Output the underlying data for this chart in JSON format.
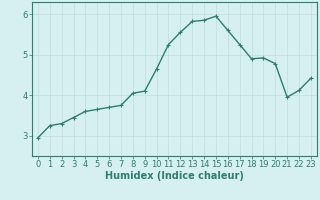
{
  "x": [
    0,
    1,
    2,
    3,
    4,
    5,
    6,
    7,
    8,
    9,
    10,
    11,
    12,
    13,
    14,
    15,
    16,
    17,
    18,
    19,
    20,
    21,
    22,
    23
  ],
  "y": [
    2.95,
    3.25,
    3.3,
    3.45,
    3.6,
    3.65,
    3.7,
    3.75,
    4.05,
    4.1,
    4.65,
    5.25,
    5.55,
    5.82,
    5.85,
    5.95,
    5.6,
    5.25,
    4.9,
    4.92,
    4.78,
    3.95,
    4.12,
    4.42
  ],
  "line_color": "#2e7d6e",
  "marker": "+",
  "marker_size": 3,
  "bg_color": "#d5f0ee",
  "grid_color": "#c0deda",
  "xlabel": "Humidex (Indice chaleur)",
  "xlim": [
    -0.5,
    23.5
  ],
  "ylim": [
    2.5,
    6.3
  ],
  "yticks": [
    3,
    4,
    5,
    6
  ],
  "xticks": [
    0,
    1,
    2,
    3,
    4,
    5,
    6,
    7,
    8,
    9,
    10,
    11,
    12,
    13,
    14,
    15,
    16,
    17,
    18,
    19,
    20,
    21,
    22,
    23
  ],
  "xlabel_fontsize": 7,
  "tick_fontsize": 6,
  "line_width": 1.0
}
